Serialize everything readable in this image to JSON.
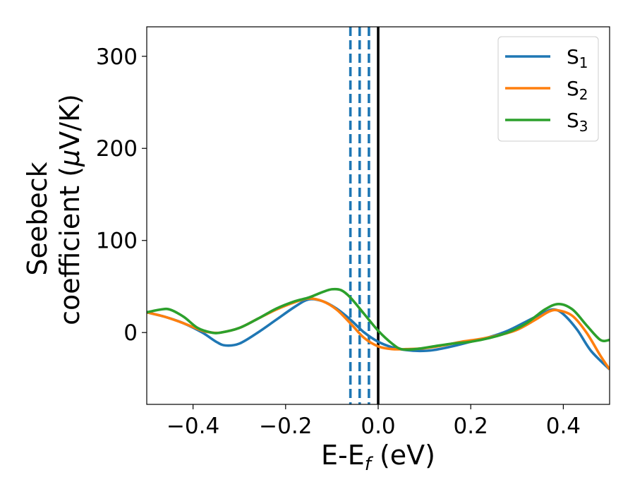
{
  "chart_data": {
    "type": "line",
    "xlabel_main": "E-E",
    "xlabel_sub": "f",
    "xlabel_unit": " (eV)",
    "ylabel_line1": "Seebeck",
    "ylabel_line2_text": "coefficient  (",
    "ylabel_mu": "μ",
    "ylabel_unit": "V/K)",
    "xlim": [
      -0.5,
      0.5
    ],
    "ylim": [
      -78,
      332
    ],
    "xticks": [
      -0.4,
      -0.2,
      0.0,
      0.2,
      0.4
    ],
    "xtick_labels": [
      "−0.4",
      "−0.2",
      "0.0",
      "0.2",
      "0.4"
    ],
    "yticks": [
      0,
      100,
      200,
      300
    ],
    "ytick_labels": [
      "0",
      "100",
      "200",
      "300"
    ],
    "legend_position": "top-right",
    "grid": false,
    "series": [
      {
        "name": "S",
        "sub": "1",
        "color": "#1f77b4",
        "x": [
          -0.5,
          -0.46,
          -0.42,
          -0.38,
          -0.35,
          -0.33,
          -0.3,
          -0.26,
          -0.22,
          -0.18,
          -0.15,
          -0.12,
          -0.09,
          -0.06,
          -0.03,
          0.0,
          0.03,
          0.06,
          0.09,
          0.12,
          0.16,
          0.2,
          0.24,
          0.28,
          0.32,
          0.36,
          0.38,
          0.4,
          0.43,
          0.46,
          0.5
        ],
        "y": [
          22,
          17,
          10,
          0,
          -10,
          -14,
          -12,
          0,
          14,
          28,
          36,
          34,
          26,
          14,
          0,
          -10,
          -16,
          -19,
          -20,
          -19,
          -15,
          -10,
          -5,
          2,
          12,
          22,
          25,
          20,
          3,
          -20,
          -40
        ]
      },
      {
        "name": "S",
        "sub": "2",
        "color": "#ff7f0e",
        "x": [
          -0.5,
          -0.46,
          -0.42,
          -0.38,
          -0.36,
          -0.34,
          -0.3,
          -0.26,
          -0.22,
          -0.18,
          -0.15,
          -0.12,
          -0.09,
          -0.06,
          -0.03,
          0.0,
          0.03,
          0.06,
          0.1,
          0.14,
          0.18,
          0.22,
          0.26,
          0.3,
          0.34,
          0.37,
          0.39,
          0.42,
          0.45,
          0.48,
          0.5
        ],
        "y": [
          22,
          17,
          10,
          2,
          0,
          0,
          5,
          15,
          25,
          33,
          37,
          34,
          25,
          10,
          -6,
          -15,
          -18,
          -18,
          -17,
          -14,
          -10,
          -7,
          -3,
          3,
          14,
          23,
          24,
          18,
          0,
          -25,
          -40
        ]
      },
      {
        "name": "S",
        "sub": "3",
        "color": "#2ca02c",
        "x": [
          -0.5,
          -0.47,
          -0.45,
          -0.42,
          -0.39,
          -0.36,
          -0.34,
          -0.3,
          -0.26,
          -0.22,
          -0.18,
          -0.15,
          -0.12,
          -0.1,
          -0.08,
          -0.06,
          -0.03,
          0.0,
          0.03,
          0.05,
          0.08,
          0.12,
          0.16,
          0.2,
          0.24,
          0.28,
          0.32,
          0.36,
          0.39,
          0.42,
          0.45,
          0.48,
          0.5
        ],
        "y": [
          22,
          25,
          25,
          17,
          5,
          0,
          0,
          5,
          15,
          26,
          34,
          38,
          44,
          47,
          46,
          38,
          20,
          2,
          -12,
          -18,
          -18,
          -15,
          -12,
          -10,
          -6,
          0,
          10,
          25,
          31,
          25,
          8,
          -8,
          -8
        ]
      }
    ],
    "reference_lines": [
      {
        "x": 0.0,
        "color": "#000000",
        "style": "solid"
      },
      {
        "x": -0.02,
        "color": "#1f77b4",
        "style": "dashed"
      },
      {
        "x": -0.04,
        "color": "#1f77b4",
        "style": "dashed"
      },
      {
        "x": -0.06,
        "color": "#1f77b4",
        "style": "dashed"
      }
    ]
  }
}
